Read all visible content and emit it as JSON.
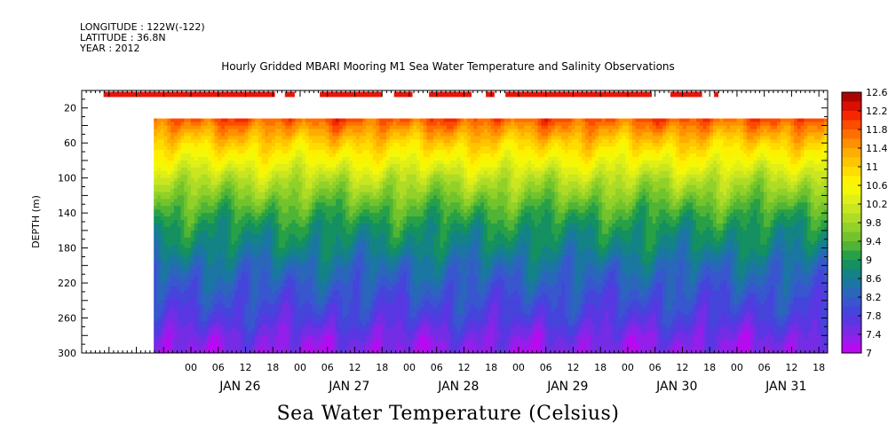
{
  "header": {
    "longitude": "LONGITUDE : 122W(-122)",
    "latitude": "LATITUDE : 36.8N",
    "year": "YEAR : 2012"
  },
  "chart_data": {
    "type": "heatmap",
    "title": "Hourly Gridded MBARI Mooring M1 Sea Water Temperature and Salinity Observations",
    "bottom_title": "Sea Water Temperature (Celsius)",
    "ylabel": "DEPTH (m)",
    "xlabel": "",
    "y_axis": {
      "ylim": [
        300,
        0
      ],
      "ticks": [
        20,
        60,
        100,
        140,
        180,
        220,
        260,
        300
      ],
      "inverted": true
    },
    "x_axis": {
      "start_day": 25,
      "end_day": 31.83,
      "hour_ticks": [
        "00",
        "06",
        "12",
        "18",
        "00",
        "06",
        "12",
        "18",
        "00",
        "06",
        "12",
        "18",
        "00",
        "06",
        "12",
        "18",
        "00",
        "06",
        "12",
        "18",
        "00",
        "06",
        "12",
        "18"
      ],
      "day_labels": [
        "JAN 26",
        "JAN 27",
        "JAN 28",
        "JAN 29",
        "JAN 30",
        "JAN 31"
      ]
    },
    "data_start_depth": 32,
    "data_start_time": 25.66,
    "colorbar": {
      "min": 7,
      "max": 12.6,
      "step": 0.2,
      "tick_labels": [
        "12.6",
        "12.2",
        "11.8",
        "11.4",
        "11",
        "10.6",
        "10.2",
        "9.8",
        "9.4",
        "9",
        "8.6",
        "8.2",
        "7.8",
        "7.4",
        "7"
      ]
    },
    "surface_observation_segments": [
      [
        25.2,
        26.77
      ],
      [
        26.86,
        26.95
      ],
      [
        27.18,
        27.75
      ],
      [
        27.86,
        28.03
      ],
      [
        28.18,
        28.57
      ],
      [
        28.7,
        28.78
      ],
      [
        28.88,
        30.22
      ],
      [
        30.39,
        30.68
      ],
      [
        30.79,
        30.83
      ]
    ],
    "temperature_profile": {
      "depths": [
        32,
        40,
        60,
        80,
        100,
        120,
        140,
        160,
        180,
        200,
        220,
        240,
        260,
        280,
        300
      ],
      "temps": [
        11.9,
        11.6,
        11.0,
        10.5,
        10.0,
        9.6,
        9.2,
        8.9,
        8.7,
        8.4,
        8.2,
        8.0,
        7.8,
        7.5,
        7.3
      ]
    }
  }
}
